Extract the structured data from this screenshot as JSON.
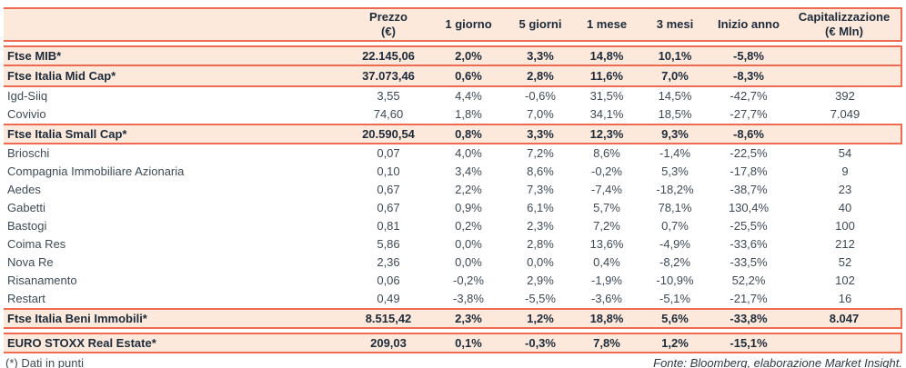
{
  "colors": {
    "accent_border": "#ee6a50",
    "highlight_row_bg": "#fce9dc",
    "bold_text": "#1c2a39",
    "regular_text": "#3e4a55"
  },
  "table": {
    "columns": [
      {
        "key": "name",
        "label": "",
        "sub": ""
      },
      {
        "key": "prezzo",
        "label": "Prezzo",
        "sub": "(€)"
      },
      {
        "key": "1-giorno",
        "label": "1 giorno",
        "sub": ""
      },
      {
        "key": "5-giorni",
        "label": "5 giorni",
        "sub": ""
      },
      {
        "key": "1-mese",
        "label": "1 mese",
        "sub": ""
      },
      {
        "key": "3-mesi",
        "label": "3 mesi",
        "sub": ""
      },
      {
        "key": "inizio-anno",
        "label": "Inizio anno",
        "sub": ""
      },
      {
        "key": "capitalizzazione",
        "label": "Capitalizzazione",
        "sub": "(€ Mln)"
      }
    ],
    "rows": [
      {
        "name": "Ftse MIB*",
        "type": "index",
        "gap_before": true,
        "values": [
          "22.145,06",
          "2,0%",
          "3,3%",
          "14,8%",
          "10,1%",
          "-5,8%",
          ""
        ]
      },
      {
        "name": "Ftse Italia Mid Cap*",
        "type": "index",
        "values": [
          "37.073,46",
          "0,6%",
          "2,8%",
          "11,6%",
          "7,0%",
          "-8,3%",
          ""
        ]
      },
      {
        "name": "Igd-Siiq",
        "type": "stock",
        "values": [
          "3,55",
          "4,4%",
          "-0,6%",
          "31,5%",
          "14,5%",
          "-42,7%",
          "392"
        ]
      },
      {
        "name": "Covivio",
        "type": "stock",
        "values": [
          "74,60",
          "1,8%",
          "7,0%",
          "34,1%",
          "18,5%",
          "-27,7%",
          "7.049"
        ]
      },
      {
        "name": "Ftse Italia Small Cap*",
        "type": "index",
        "values": [
          "20.590,54",
          "0,8%",
          "3,3%",
          "12,3%",
          "9,3%",
          "-8,6%",
          ""
        ]
      },
      {
        "name": "Brioschi",
        "type": "stock",
        "values": [
          "0,07",
          "4,0%",
          "7,2%",
          "8,6%",
          "-1,4%",
          "-22,5%",
          "54"
        ]
      },
      {
        "name": "Compagnia Immobiliare Azionaria",
        "type": "stock",
        "values": [
          "0,10",
          "3,4%",
          "8,6%",
          "-0,2%",
          "5,3%",
          "-17,8%",
          "9"
        ]
      },
      {
        "name": "Aedes",
        "type": "stock",
        "values": [
          "0,67",
          "2,2%",
          "7,3%",
          "-7,4%",
          "-18,2%",
          "-38,7%",
          "23"
        ]
      },
      {
        "name": "Gabetti",
        "type": "stock",
        "values": [
          "0,67",
          "0,9%",
          "6,1%",
          "5,7%",
          "78,1%",
          "130,4%",
          "40"
        ]
      },
      {
        "name": "Bastogi",
        "type": "stock",
        "values": [
          "0,81",
          "0,2%",
          "2,3%",
          "7,2%",
          "0,7%",
          "-25,5%",
          "100"
        ]
      },
      {
        "name": "Coima Res",
        "type": "stock",
        "values": [
          "5,86",
          "0,0%",
          "2,8%",
          "13,6%",
          "-4,9%",
          "-33,6%",
          "212"
        ]
      },
      {
        "name": "Nova Re",
        "type": "stock",
        "values": [
          "2,36",
          "0,0%",
          "0,0%",
          "0,4%",
          "-8,2%",
          "-33,5%",
          "52"
        ]
      },
      {
        "name": "Risanamento",
        "type": "stock",
        "values": [
          "0,06",
          "-0,2%",
          "2,9%",
          "-1,9%",
          "-10,9%",
          "52,2%",
          "102"
        ]
      },
      {
        "name": "Restart",
        "type": "stock",
        "values": [
          "0,49",
          "-3,8%",
          "-5,5%",
          "-3,6%",
          "-5,1%",
          "-21,7%",
          "16"
        ]
      },
      {
        "name": "Ftse Italia Beni Immobili*",
        "type": "index",
        "values": [
          "8.515,42",
          "2,3%",
          "1,2%",
          "18,8%",
          "5,6%",
          "-33,8%",
          "8.047"
        ]
      },
      {
        "name": "EURO STOXX Real Estate*",
        "type": "index",
        "gap_before": true,
        "values": [
          "209,03",
          "0,1%",
          "-0,3%",
          "7,8%",
          "1,2%",
          "-15,1%",
          ""
        ]
      }
    ]
  },
  "footer": {
    "note": "(*) Dati in punti",
    "source": "Fonte: Bloomberg, elaborazione Market Insight."
  }
}
